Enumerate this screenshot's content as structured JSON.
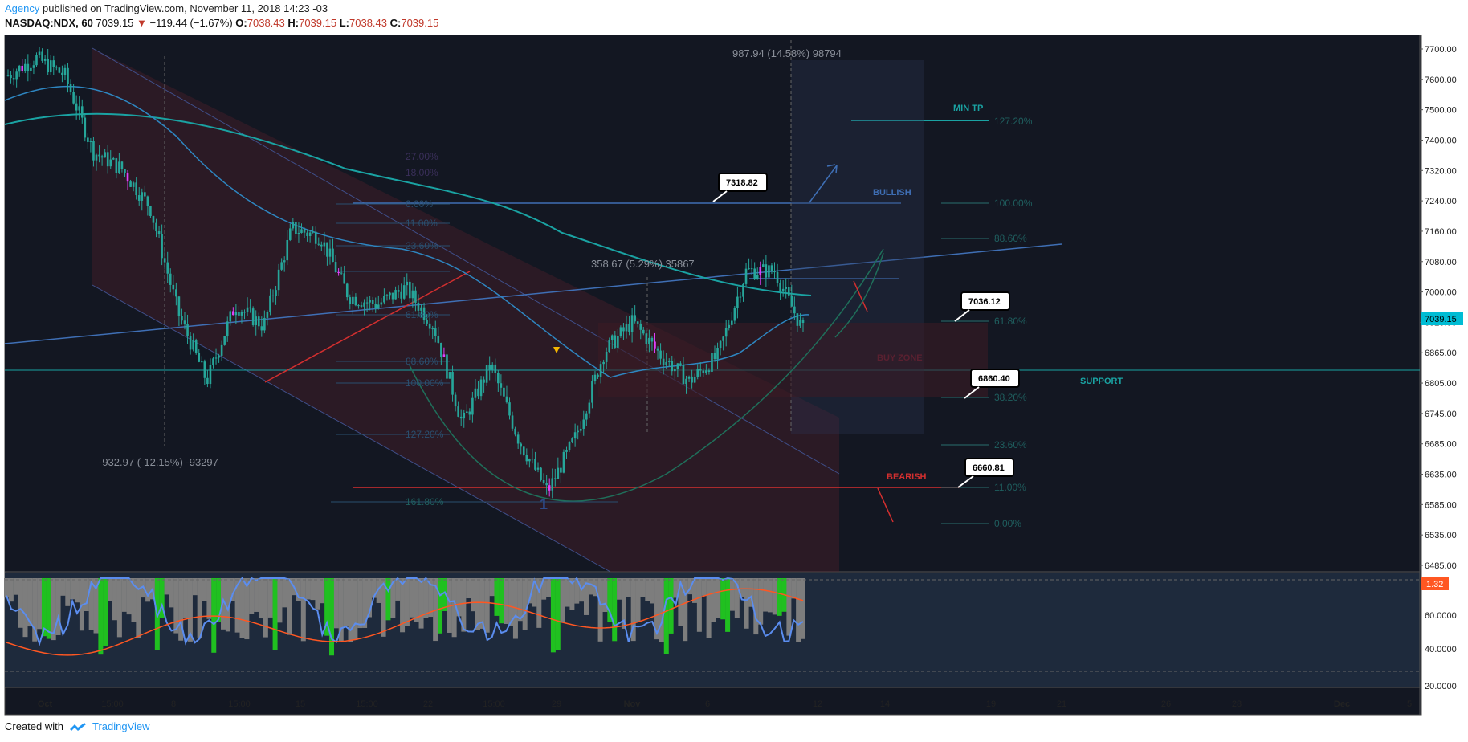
{
  "header": {
    "author": "Agency",
    "published": "published on TradingView.com, November 11, 2018 14:23 -03",
    "symbol": "NASDAQ:NDX, 60",
    "last": "7039.15",
    "change": "−119.44 (−1.67%)",
    "ohlc": {
      "o_label": "O:",
      "o": "7038.43",
      "h_label": "H:",
      "h": "7039.15",
      "l_label": "L:",
      "l": "7038.43",
      "c_label": "C:",
      "c": "7039.15"
    }
  },
  "footer": {
    "created_with": "Created with",
    "brand": "TradingView"
  },
  "colors": {
    "bg": "#131722",
    "up": "#26a69a",
    "down": "#26a69a",
    "red": "#d32f2f",
    "blue": "#3f6fb5",
    "teal": "#1aa3a3",
    "rsi": "#5b8def",
    "stoch": "#ff5722",
    "green": "#20c020",
    "gray": "#7d7d7d"
  },
  "chart_data": {
    "type": "candlestick",
    "x_ticks": [
      "Oct",
      "15:00",
      "8",
      "15:00",
      "15",
      "15:00",
      "22",
      "15:00",
      "29",
      "Nov",
      "6",
      "12",
      "14",
      "19",
      "21",
      "26",
      "28",
      "Dec",
      "5"
    ],
    "y_ticks": [
      "7700.00",
      "7600.00",
      "7500.00",
      "7400.00",
      "7320.00",
      "7240.00",
      "7160.00",
      "7080.00",
      "7000.00",
      "6925.00",
      "6865.00",
      "6805.00",
      "6745.00",
      "6685.00",
      "6635.00",
      "6585.00",
      "6535.00",
      "6485.00"
    ],
    "last_price": "7039.15",
    "ylim": [
      6470,
      7740
    ],
    "close_path": [
      {
        "x": "Oct 1",
        "y": 7640
      },
      {
        "x": "Oct 3",
        "y": 7680
      },
      {
        "x": "Oct 4",
        "y": 7640
      },
      {
        "x": "Oct 5",
        "y": 7460
      },
      {
        "x": "Oct 8",
        "y": 7420
      },
      {
        "x": "Oct 9",
        "y": 7330
      },
      {
        "x": "Oct 10",
        "y": 7080
      },
      {
        "x": "Oct 11",
        "y": 6920
      },
      {
        "x": "Oct 12",
        "y": 7100
      },
      {
        "x": "Oct 15",
        "y": 7050
      },
      {
        "x": "Oct 16",
        "y": 7280
      },
      {
        "x": "Oct 17",
        "y": 7260
      },
      {
        "x": "Oct 18",
        "y": 7120
      },
      {
        "x": "Oct 19",
        "y": 7100
      },
      {
        "x": "Oct 22",
        "y": 7140
      },
      {
        "x": "Oct 23",
        "y": 7050
      },
      {
        "x": "Oct 24",
        "y": 6820
      },
      {
        "x": "Oct 25",
        "y": 6960
      },
      {
        "x": "Oct 26",
        "y": 6780
      },
      {
        "x": "Oct 29",
        "y": 6660
      },
      {
        "x": "Oct 30",
        "y": 6790
      },
      {
        "x": "Oct 31",
        "y": 6990
      },
      {
        "x": "Nov 1",
        "y": 7060
      },
      {
        "x": "Nov 2",
        "y": 6980
      },
      {
        "x": "Nov 5",
        "y": 6920
      },
      {
        "x": "Nov 6",
        "y": 6980
      },
      {
        "x": "Nov 7",
        "y": 7180
      },
      {
        "x": "Nov 8",
        "y": 7180
      },
      {
        "x": "Nov 9",
        "y": 7039
      }
    ],
    "annotations": {
      "callouts": [
        "7318.82",
        "7036.12",
        "6860.40",
        "6660.81"
      ],
      "measures": [
        "987.94 (14.58%) 98794",
        "358.67 (5.29%) 35867",
        "-932.97 (-12.15%) -93297"
      ],
      "fib_levels_right": [
        "127.20%",
        "100.00%",
        "88.60%",
        "61.80%",
        "38.20%",
        "23.60%",
        "11.00%",
        "0.00%"
      ],
      "fib_levels_left": [
        "27.00%",
        "18.00%",
        "0.00%",
        "11.00%",
        "23.60%",
        "61.80%",
        "88.60%",
        "100.00%",
        "127.20%",
        "161.80%"
      ],
      "labels": [
        "MIN TP",
        "BULLISH",
        "BUY ZONE",
        "SUPPORT",
        "BEARISH",
        "1"
      ]
    },
    "oscillator": {
      "y_ticks": [
        "60.0000",
        "40.0000",
        "20.0000"
      ],
      "badge": "1.32",
      "ylim": [
        15,
        90
      ]
    }
  }
}
